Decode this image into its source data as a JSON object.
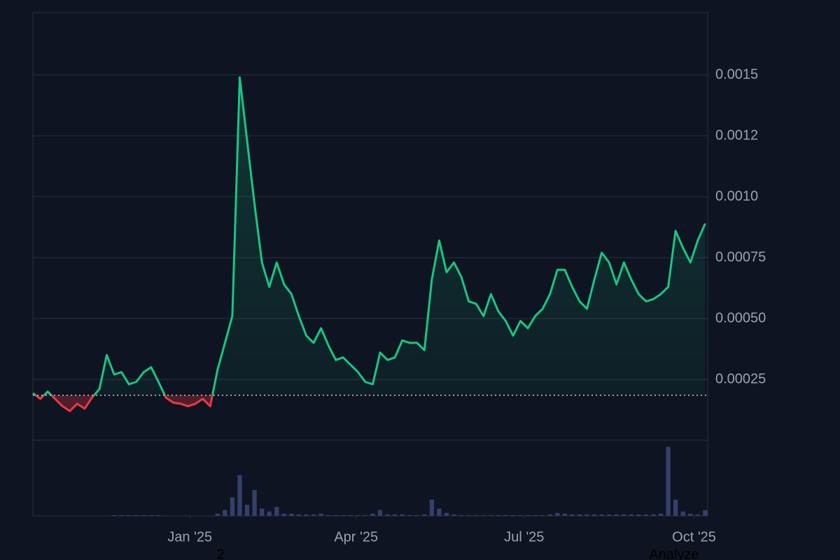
{
  "chart_data": {
    "type": "line",
    "x": [
      0,
      4,
      8,
      12,
      16,
      20,
      24,
      28,
      32,
      36,
      40,
      44,
      48,
      52,
      56,
      60,
      64,
      68,
      72,
      76,
      80,
      84,
      88,
      92,
      96,
      100,
      104,
      108,
      112,
      116,
      120,
      124,
      128,
      132,
      136,
      140,
      144,
      148,
      152,
      156,
      160,
      164,
      168,
      172,
      176,
      180,
      184,
      188,
      192,
      196,
      200,
      204,
      208,
      212,
      216,
      220,
      224,
      228,
      232,
      236,
      240,
      244,
      248,
      252,
      256,
      260,
      264,
      268,
      272,
      276,
      280,
      284,
      288,
      292,
      296,
      300,
      304,
      308,
      312,
      316,
      320,
      324,
      328,
      332,
      336,
      340,
      344,
      348,
      352,
      356,
      360,
      364
    ],
    "series": [
      {
        "color": "#16c784",
        "values": [
          0.000193,
          0.00017,
          0.0002,
          0.00017,
          0.00014,
          0.00012,
          0.00015,
          0.00013,
          0.000175,
          0.00021,
          0.00035,
          0.00027,
          0.00028,
          0.00023,
          0.00024,
          0.00028,
          0.0003,
          0.00024,
          0.000175,
          0.000155,
          0.00015,
          0.00014,
          0.00015,
          0.00017,
          0.00014,
          0.00029,
          0.0004,
          0.00051,
          0.00149,
          0.00123,
          0.00097,
          0.00073,
          0.00063,
          0.00073,
          0.00064,
          0.0006,
          0.00051,
          0.00043,
          0.0004,
          0.00046,
          0.00039,
          0.00033,
          0.00034,
          0.00031,
          0.00028,
          0.00024,
          0.00023,
          0.00036,
          0.00033,
          0.00034,
          0.00041,
          0.0004,
          0.0004,
          0.00037,
          0.00066,
          0.00082,
          0.00069,
          0.00073,
          0.00067,
          0.00057,
          0.00056,
          0.00051,
          0.0006,
          0.00053,
          0.00049,
          0.00043,
          0.00049,
          0.00046,
          0.00051,
          0.00054,
          0.0006,
          0.0007,
          0.0007,
          0.00063,
          0.00057,
          0.00054,
          0.00066,
          0.00077,
          0.00073,
          0.00064,
          0.00073,
          0.00066,
          0.0006,
          0.00057,
          0.00058,
          0.0006,
          0.00063,
          0.00086,
          0.00079,
          0.00073,
          0.00082,
          0.00089
        ]
      }
    ],
    "below_color": "#ea3943",
    "baseline": 0.000185,
    "volume": {
      "color": "#34406a",
      "ylim": [
        0,
        100
      ],
      "values": [
        0,
        0,
        0,
        0,
        0,
        0,
        0,
        0,
        0,
        0,
        0,
        1,
        1,
        1,
        1,
        1,
        1,
        1,
        0,
        0,
        0,
        0,
        0,
        0,
        0,
        3,
        8,
        25,
        55,
        15,
        35,
        10,
        6,
        12,
        3,
        3,
        2,
        2,
        2,
        3,
        1,
        1,
        1,
        1,
        1,
        1,
        3,
        8,
        2,
        2,
        2,
        1,
        1,
        2,
        22,
        10,
        4,
        2,
        1,
        1,
        1,
        1,
        1,
        1,
        1,
        1,
        1,
        1,
        1,
        1,
        2,
        4,
        3,
        2,
        2,
        2,
        2,
        2,
        2,
        2,
        2,
        2,
        2,
        2,
        2,
        3,
        93,
        22,
        6,
        3,
        2,
        8
      ]
    },
    "xlim": [
      0,
      365
    ],
    "xticks": [
      {
        "value": 85,
        "label": "Jan '25"
      },
      {
        "value": 175,
        "label": "Apr '25"
      },
      {
        "value": 266,
        "label": "Jul '25"
      },
      {
        "value": 358,
        "label": "Oct '25"
      }
    ],
    "ylim": [
      0,
      0.00175
    ],
    "yticks": [
      0.00025,
      {
        "value": 0.0005,
        "label": "0.00050"
      },
      0.00075,
      {
        "value": 0.001,
        "label": "0.0010"
      },
      {
        "value": 0.00125,
        "label": "0.0012"
      },
      0.0015
    ],
    "grid": true
  },
  "footer": {
    "left": "2",
    "right": "Analyze"
  }
}
